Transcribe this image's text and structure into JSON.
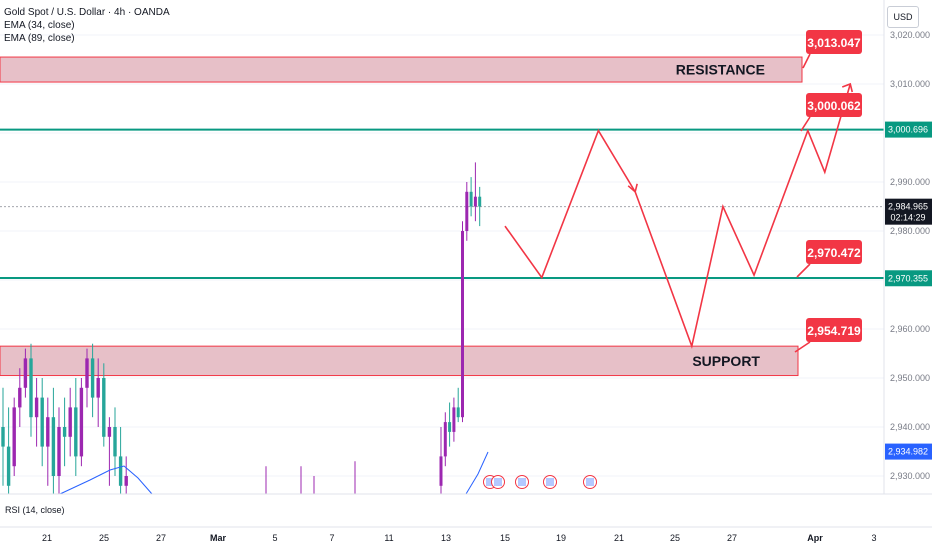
{
  "header": {
    "symbol_line": "Gold Spot / U.S. Dollar · 4h · OANDA",
    "ema1": "EMA (34, close)",
    "ema2": "EMA (89, close)",
    "currency_button": "USD"
  },
  "rsi_label": "RSI (14, close)",
  "colors": {
    "bull": "#9c27b0",
    "bear": "#26a69a",
    "zone_fill": "#e3b5be",
    "zone_border": "#f23645",
    "level_line": "#089981",
    "callout": "#f23645",
    "ema": "#2962ff"
  },
  "chart_data": {
    "type": "candlestick",
    "title": "Gold Spot / U.S. Dollar · 4h · OANDA",
    "y_axis": {
      "ticks": [
        "3,020.000",
        "3,010.000",
        "3,000.000",
        "2,990.000",
        "2,980.000",
        "2,970.000",
        "2,960.000",
        "2,950.000",
        "2,940.000",
        "2,930.000"
      ],
      "range": [
        2926,
        3022
      ]
    },
    "x_axis": {
      "ticks": [
        "21",
        "25",
        "27",
        "Mar",
        "5",
        "7",
        "11",
        "13",
        "15",
        "19",
        "21",
        "25",
        "27",
        "Apr",
        "3"
      ]
    },
    "price_labels": [
      {
        "value": "3,000.696",
        "kind": "level"
      },
      {
        "value": "2,984.965",
        "countdown": "02:14:29",
        "kind": "last"
      },
      {
        "value": "2,970.355",
        "kind": "level"
      },
      {
        "value": "2,934.982",
        "kind": "ema"
      }
    ],
    "zones": [
      {
        "name": "RESISTANCE",
        "top": 3015.5,
        "bottom": 3010.4
      },
      {
        "name": "SUPPORT",
        "top": 2956.5,
        "bottom": 2950.5
      }
    ],
    "levels": [
      3000.7,
      2970.4
    ],
    "callouts": [
      "3,013.047",
      "3,000.062",
      "2,970.472",
      "2,954.719"
    ],
    "projection_path": [
      [
        15.0,
        2981
      ],
      [
        16.3,
        2970.5
      ],
      [
        18.3,
        3000.5
      ],
      [
        19.6,
        2988
      ],
      [
        21.6,
        2956.5
      ],
      [
        22.7,
        2985
      ],
      [
        23.8,
        2971
      ],
      [
        25.7,
        3000.5
      ],
      [
        26.3,
        2992
      ],
      [
        27.2,
        3010
      ]
    ],
    "arrow_head_at": [
      19.6,
      2988
    ],
    "candles": [
      {
        "o": 2940,
        "h": 2948,
        "l": 2928,
        "c": 2936
      },
      {
        "o": 2936,
        "h": 2944,
        "l": 2924,
        "c": 2928
      },
      {
        "o": 2932,
        "h": 2946,
        "l": 2930,
        "c": 2944
      },
      {
        "o": 2944,
        "h": 2952,
        "l": 2940,
        "c": 2948
      },
      {
        "o": 2948,
        "h": 2956,
        "l": 2946,
        "c": 2954
      },
      {
        "o": 2954,
        "h": 2957,
        "l": 2938,
        "c": 2942
      },
      {
        "o": 2942,
        "h": 2950,
        "l": 2936,
        "c": 2946
      },
      {
        "o": 2946,
        "h": 2950,
        "l": 2932,
        "c": 2936
      },
      {
        "o": 2936,
        "h": 2946,
        "l": 2928,
        "c": 2942
      },
      {
        "o": 2942,
        "h": 2948,
        "l": 2926,
        "c": 2930
      },
      {
        "o": 2930,
        "h": 2944,
        "l": 2926,
        "c": 2940
      },
      {
        "o": 2940,
        "h": 2946,
        "l": 2932,
        "c": 2938
      },
      {
        "o": 2938,
        "h": 2948,
        "l": 2934,
        "c": 2944
      },
      {
        "o": 2944,
        "h": 2950,
        "l": 2930,
        "c": 2934
      },
      {
        "o": 2934,
        "h": 2950,
        "l": 2932,
        "c": 2948
      },
      {
        "o": 2948,
        "h": 2956,
        "l": 2944,
        "c": 2954
      },
      {
        "o": 2954,
        "h": 2957,
        "l": 2942,
        "c": 2946
      },
      {
        "o": 2946,
        "h": 2954,
        "l": 2940,
        "c": 2950
      },
      {
        "o": 2950,
        "h": 2953,
        "l": 2936,
        "c": 2938
      },
      {
        "o": 2938,
        "h": 2942,
        "l": 2928,
        "c": 2940
      },
      {
        "o": 2940,
        "h": 2944,
        "l": 2930,
        "c": 2934
      },
      {
        "o": 2934,
        "h": 2940,
        "l": 2926,
        "c": 2928
      },
      {
        "o": 2928,
        "h": 2934,
        "l": 2924,
        "c": 2930
      }
    ],
    "candles_right": [
      {
        "o": 2928,
        "h": 2940,
        "l": 2926,
        "c": 2934
      },
      {
        "o": 2934,
        "h": 2943,
        "l": 2932,
        "c": 2941
      },
      {
        "o": 2941,
        "h": 2945,
        "l": 2936,
        "c": 2939
      },
      {
        "o": 2939,
        "h": 2946,
        "l": 2937,
        "c": 2944
      },
      {
        "o": 2944,
        "h": 2948,
        "l": 2941,
        "c": 2942
      },
      {
        "o": 2942,
        "h": 2982,
        "l": 2941,
        "c": 2980
      },
      {
        "o": 2980,
        "h": 2990,
        "l": 2978,
        "c": 2988
      },
      {
        "o": 2988,
        "h": 2991,
        "l": 2983,
        "c": 2985
      },
      {
        "o": 2985,
        "h": 2994,
        "l": 2982,
        "c": 2987
      },
      {
        "o": 2987,
        "h": 2989,
        "l": 2981,
        "c": 2985
      }
    ]
  }
}
